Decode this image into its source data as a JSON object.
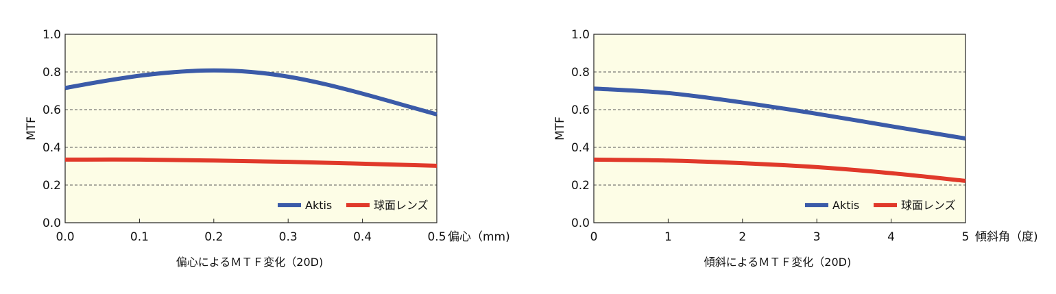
{
  "chart_data": [
    {
      "type": "line",
      "title": "",
      "caption": "偏心によるＭＴＦ変化（20D)",
      "xlabel": "偏心（mm)",
      "ylabel": "MTF",
      "xlim": [
        0,
        0.5
      ],
      "ylim": [
        0,
        1.0
      ],
      "x_ticks": [
        "0.0",
        "0.1",
        "0.2",
        "0.3",
        "0.4",
        "0.5"
      ],
      "y_ticks": [
        "0.0",
        "0.2",
        "0.4",
        "0.6",
        "0.8",
        "1.0"
      ],
      "grid": "horizontal dashed",
      "legend_position": "bottom-right",
      "background": "#fdfde6",
      "series": [
        {
          "name": "Aktis",
          "color": "#3b5ba8",
          "x": [
            0,
            0.05,
            0.1,
            0.15,
            0.2,
            0.25,
            0.3,
            0.35,
            0.4,
            0.45,
            0.5
          ],
          "y": [
            0.715,
            0.75,
            0.78,
            0.8,
            0.808,
            0.8,
            0.775,
            0.735,
            0.685,
            0.63,
            0.575
          ]
        },
        {
          "name": "球面レンズ",
          "color": "#e0392a",
          "x": [
            0,
            0.1,
            0.2,
            0.3,
            0.4,
            0.5
          ],
          "y": [
            0.335,
            0.335,
            0.33,
            0.323,
            0.313,
            0.302
          ]
        }
      ]
    },
    {
      "type": "line",
      "title": "",
      "caption": "傾斜によるＭＴＦ変化（20D)",
      "xlabel": "傾斜角（度)",
      "ylabel": "MTF",
      "xlim": [
        0,
        5
      ],
      "ylim": [
        0,
        1.0
      ],
      "x_ticks": [
        "0",
        "1",
        "2",
        "3",
        "4",
        "5"
      ],
      "y_ticks": [
        "0.0",
        "0.2",
        "0.4",
        "0.6",
        "0.8",
        "1.0"
      ],
      "grid": "horizontal dashed",
      "legend_position": "bottom-right",
      "background": "#fdfde6",
      "series": [
        {
          "name": "Aktis",
          "color": "#3b5ba8",
          "x": [
            0,
            1,
            2,
            3,
            4,
            5
          ],
          "y": [
            0.712,
            0.688,
            0.638,
            0.578,
            0.512,
            0.447
          ]
        },
        {
          "name": "球面レンズ",
          "color": "#e0392a",
          "x": [
            0,
            1,
            2,
            3,
            4,
            5
          ],
          "y": [
            0.335,
            0.33,
            0.316,
            0.295,
            0.263,
            0.222
          ]
        }
      ]
    }
  ]
}
